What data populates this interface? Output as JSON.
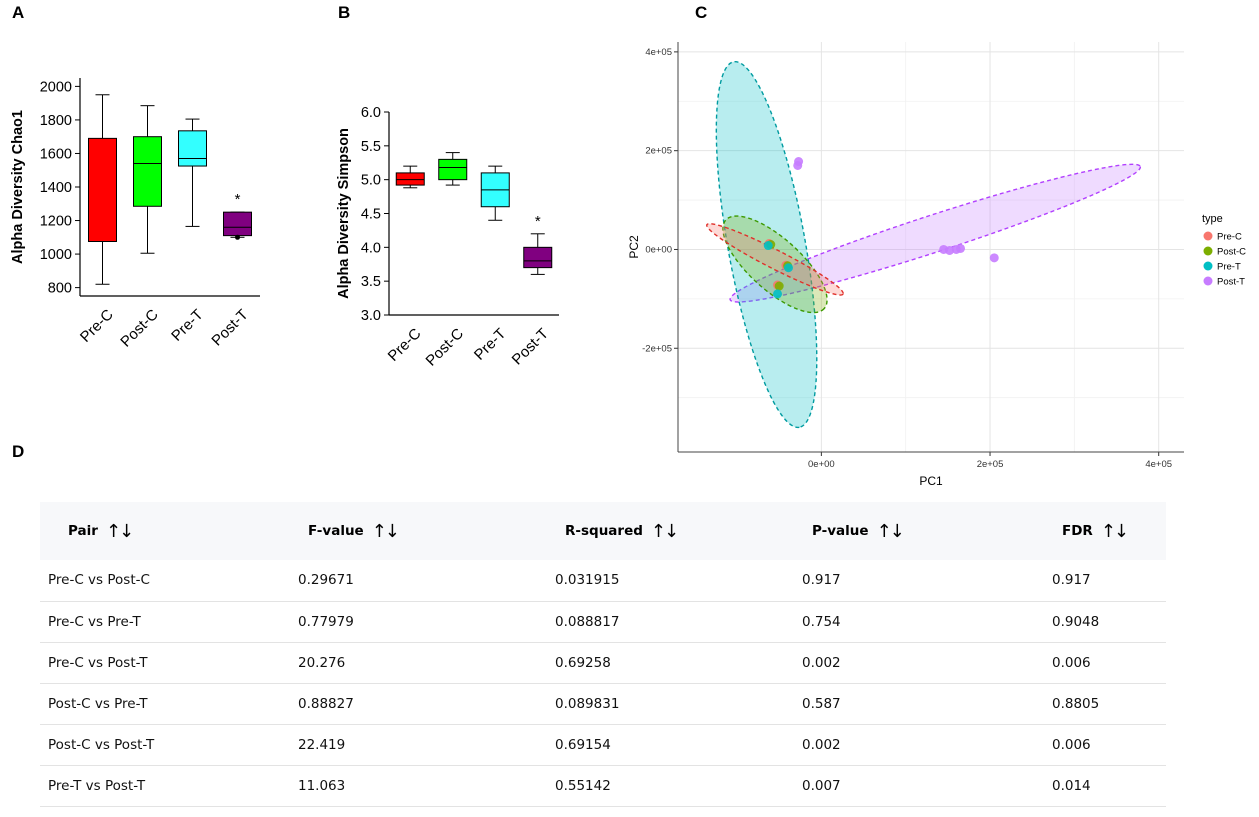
{
  "panels": {
    "a": "A",
    "b": "B",
    "c": "C",
    "d": "D"
  },
  "chart_data": [
    {
      "id": "A",
      "type": "box",
      "title": "",
      "xlabel": "",
      "ylabel": "Alpha Diversity Chao1",
      "ylim": [
        750,
        2050
      ],
      "yticks": [
        800,
        1000,
        1200,
        1400,
        1600,
        1800,
        2000
      ],
      "categories": [
        "Pre-C",
        "Post-C",
        "Pre-T",
        "Post-T"
      ],
      "colors": [
        "#ff0000",
        "#00ff00",
        "#33ffff",
        "#800080"
      ],
      "boxes": [
        {
          "min": 820,
          "q1": 1075,
          "median": 1075,
          "q3": 1690,
          "max": 1950,
          "outliers": []
        },
        {
          "min": 1005,
          "q1": 1285,
          "median": 1540,
          "q3": 1700,
          "max": 1885,
          "outliers": []
        },
        {
          "min": 1165,
          "q1": 1525,
          "median": 1570,
          "q3": 1735,
          "max": 1805,
          "outliers": []
        },
        {
          "min": 1100,
          "q1": 1110,
          "median": 1160,
          "q3": 1250,
          "max": 1250,
          "outliers": [
            1100
          ]
        }
      ],
      "annotations": [
        {
          "category": "Post-T",
          "text": "*"
        }
      ]
    },
    {
      "id": "B",
      "type": "box",
      "title": "",
      "xlabel": "",
      "ylabel": "Alpha Diversity Simpson",
      "ylim": [
        3.0,
        6.0
      ],
      "yticks": [
        "3.0",
        "3.5",
        "4.0",
        "4.5",
        "5.0",
        "5.5",
        "6.0"
      ],
      "categories": [
        "Pre-C",
        "Post-C",
        "Pre-T",
        "Post-T"
      ],
      "colors": [
        "#ff0000",
        "#00ff00",
        "#33ffff",
        "#800080"
      ],
      "boxes": [
        {
          "min": 4.88,
          "q1": 4.92,
          "median": 5.0,
          "q3": 5.1,
          "max": 5.2,
          "outliers": []
        },
        {
          "min": 4.92,
          "q1": 5.0,
          "median": 5.18,
          "q3": 5.3,
          "max": 5.4,
          "outliers": []
        },
        {
          "min": 4.4,
          "q1": 4.6,
          "median": 4.85,
          "q3": 5.1,
          "max": 5.2,
          "outliers": []
        },
        {
          "min": 3.6,
          "q1": 3.7,
          "median": 3.8,
          "q3": 4.0,
          "max": 4.2,
          "outliers": []
        }
      ],
      "annotations": [
        {
          "category": "Post-T",
          "text": "*"
        }
      ]
    },
    {
      "id": "C",
      "type": "scatter",
      "title": "",
      "xlabel": "PC1",
      "ylabel": "PC2",
      "xlim": [
        -170000,
        430000
      ],
      "ylim": [
        -410000,
        420000
      ],
      "xticks": [
        0,
        200000,
        400000
      ],
      "xtick_labels": [
        "0e+00",
        "2e+05",
        "4e+05"
      ],
      "yticks": [
        -200000,
        0,
        200000,
        400000
      ],
      "ytick_labels": [
        "-2e+05",
        "0e+00",
        "2e+05",
        "4e+05"
      ],
      "grid": true,
      "legend": {
        "title": "type",
        "position": "right"
      },
      "series": [
        {
          "name": "Pre-C",
          "color": "#f8766d",
          "points": [
            [
              -62000,
              12000
            ],
            [
              -42000,
              -32000
            ],
            [
              -52000,
              -72000
            ]
          ],
          "ellipse": {
            "cx": -55000,
            "cy": -20000,
            "rx": 107000,
            "ry": 14000,
            "angle": -41
          }
        },
        {
          "name": "Post-C",
          "color": "#7cae00",
          "points": [
            [
              -60000,
              10000
            ],
            [
              -40000,
              -33000
            ],
            [
              -50000,
              -74000
            ]
          ],
          "ellipse": {
            "cx": -55000,
            "cy": -30000,
            "rx": 107000,
            "ry": 34000,
            "angle": -57
          }
        },
        {
          "name": "Pre-T",
          "color": "#00bfc4",
          "points": [
            [
              -63000,
              8000
            ],
            [
              -39000,
              -37000
            ],
            [
              -52000,
              -90000
            ]
          ],
          "ellipse": {
            "cx": -65000,
            "cy": 10000,
            "rx": 372000,
            "ry": 46000,
            "angle": -84
          }
        },
        {
          "name": "Post-T",
          "color": "#c77cff",
          "points": [
            [
              -27000,
              178000
            ],
            [
              -28000,
              170000
            ],
            [
              145000,
              0
            ],
            [
              152000,
              -2000
            ],
            [
              160000,
              0
            ],
            [
              165000,
              2000
            ],
            [
              205000,
              -17000
            ]
          ],
          "ellipse": {
            "cx": 135000,
            "cy": 33000,
            "rx": 278000,
            "ry": 31000,
            "angle": 29
          }
        }
      ]
    }
  ],
  "table": {
    "headers": [
      "Pair",
      "F-value",
      "R-squared",
      "P-value",
      "FDR"
    ],
    "sort_glyph": "↑↓",
    "rows": [
      [
        "Pre-C vs Post-C",
        "0.29671",
        "0.031915",
        "0.917",
        "0.917"
      ],
      [
        "Pre-C vs Pre-T",
        "0.77979",
        "0.088817",
        "0.754",
        "0.9048"
      ],
      [
        "Pre-C vs Post-T",
        "20.276",
        "0.69258",
        "0.002",
        "0.006"
      ],
      [
        "Post-C vs Pre-T",
        "0.88827",
        "0.089831",
        "0.587",
        "0.8805"
      ],
      [
        "Post-C vs Post-T",
        "22.419",
        "0.69154",
        "0.002",
        "0.006"
      ],
      [
        "Pre-T vs Post-T",
        "11.063",
        "0.55142",
        "0.007",
        "0.014"
      ]
    ]
  }
}
